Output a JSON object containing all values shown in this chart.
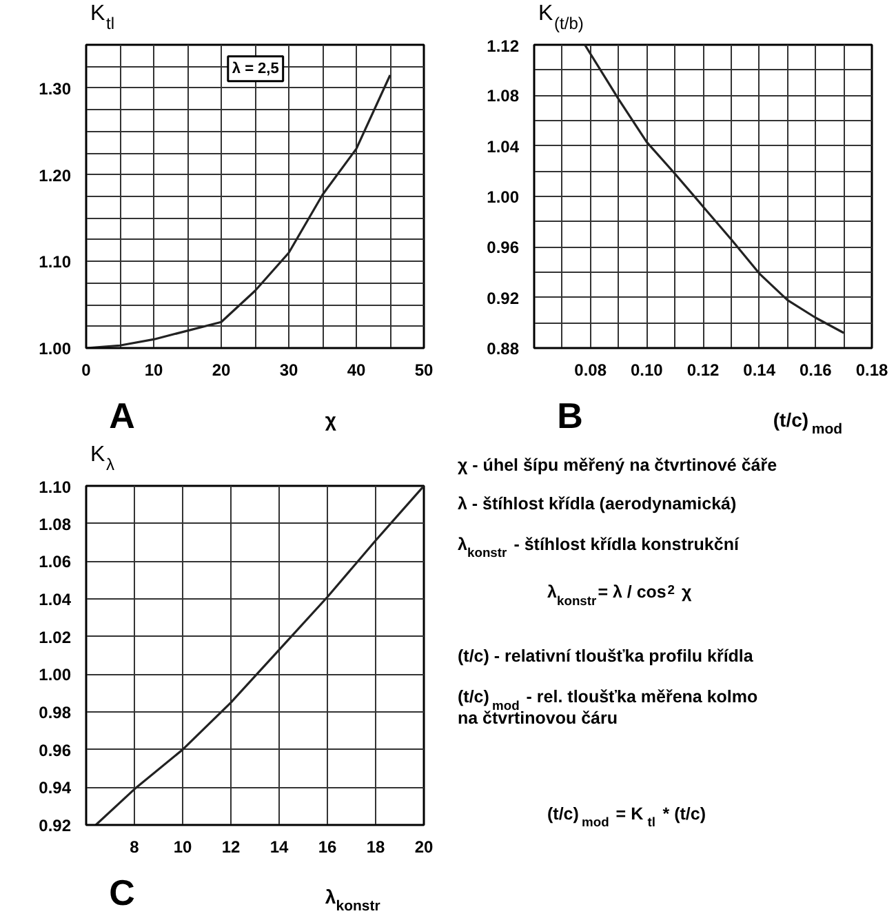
{
  "chart_data": [
    {
      "type": "line",
      "title": "A",
      "xlabel": "χ",
      "ylabel": "K$_{tl}$",
      "annotations": [
        "λ = 2,5"
      ],
      "grid": true,
      "color": "#222222",
      "x": [
        0,
        5,
        10,
        15,
        20,
        25,
        30,
        35,
        40,
        45
      ],
      "values": [
        1.0,
        1.003,
        1.01,
        1.02,
        1.03,
        1.066,
        1.11,
        1.177,
        1.23,
        1.315
      ],
      "xlim": [
        0,
        50
      ],
      "ylim": [
        1.0,
        1.35
      ],
      "xticks": [
        0,
        {
          "value": 5,
          "label": null
        },
        10,
        {
          "value": 15,
          "label": null
        },
        20,
        {
          "value": 25,
          "label": null
        },
        30,
        {
          "value": 35,
          "label": null
        },
        40,
        {
          "value": 45,
          "label": null
        },
        50
      ],
      "yticks": [
        {
          "value": 1.0,
          "label": "1.00"
        },
        {
          "value": 1.025,
          "label": null
        },
        {
          "value": 1.05,
          "label": null
        },
        {
          "value": 1.075,
          "label": null
        },
        {
          "value": 1.1,
          "label": "1.10"
        },
        {
          "value": 1.125,
          "label": null
        },
        {
          "value": 1.15,
          "label": null
        },
        {
          "value": 1.175,
          "label": null
        },
        {
          "value": 1.2,
          "label": "1.20"
        },
        {
          "value": 1.225,
          "label": null
        },
        {
          "value": 1.25,
          "label": null
        },
        {
          "value": 1.275,
          "label": null
        },
        {
          "value": 1.3,
          "label": "1.30"
        },
        {
          "value": 1.325,
          "label": null
        }
      ]
    },
    {
      "type": "line",
      "title": "B",
      "xlabel": "(t/c)$_{mod}$",
      "ylabel": "K$_{(t/b)}$",
      "grid": true,
      "color": "#222222",
      "x": [
        0.078,
        0.09,
        0.1,
        0.11,
        0.12,
        0.13,
        0.14,
        0.15,
        0.16,
        0.17
      ],
      "values": [
        1.12,
        1.077,
        1.043,
        1.018,
        0.992,
        0.966,
        0.939,
        0.918,
        0.904,
        0.892
      ],
      "xlim": [
        0.06,
        0.18
      ],
      "ylim": [
        0.88,
        1.12
      ],
      "xticks": [
        {
          "value": 0.07,
          "label": null
        },
        {
          "value": 0.08,
          "label": "0.08"
        },
        {
          "value": 0.09,
          "label": null
        },
        {
          "value": 0.1,
          "label": "0.10"
        },
        {
          "value": 0.11,
          "label": null
        },
        {
          "value": 0.12,
          "label": "0.12"
        },
        {
          "value": 0.13,
          "label": null
        },
        {
          "value": 0.14,
          "label": "0.14"
        },
        {
          "value": 0.15,
          "label": null
        },
        {
          "value": 0.16,
          "label": "0.16"
        },
        {
          "value": 0.17,
          "label": null
        },
        {
          "value": 0.18,
          "label": "0.18"
        }
      ],
      "yticks": [
        {
          "value": 0.88,
          "label": "0.88"
        },
        {
          "value": 0.9,
          "label": null
        },
        {
          "value": 0.92,
          "label": "0.92"
        },
        {
          "value": 0.94,
          "label": null
        },
        {
          "value": 0.96,
          "label": "0.96"
        },
        {
          "value": 0.98,
          "label": null
        },
        {
          "value": 1.0,
          "label": "1.00"
        },
        {
          "value": 1.02,
          "label": null
        },
        {
          "value": 1.04,
          "label": "1.04"
        },
        {
          "value": 1.06,
          "label": null
        },
        {
          "value": 1.08,
          "label": "1.08"
        },
        {
          "value": 1.1,
          "label": null
        },
        {
          "value": 1.12,
          "label": "1.12"
        }
      ]
    },
    {
      "type": "line",
      "title": "C",
      "xlabel": "λ$_{konstr}$",
      "ylabel": "K$_{λ}$",
      "grid": true,
      "color": "#222222",
      "x": [
        6.4,
        8,
        10,
        12,
        14,
        16,
        18,
        20
      ],
      "values": [
        0.92,
        0.939,
        0.96,
        0.985,
        1.013,
        1.041,
        1.071,
        1.1
      ],
      "xlim": [
        6,
        20
      ],
      "ylim": [
        0.92,
        1.1
      ],
      "xticks": [
        8,
        10,
        12,
        14,
        16,
        18,
        20
      ],
      "yticks": [
        {
          "value": 0.92,
          "label": "0.92"
        },
        {
          "value": 0.94,
          "label": "0.94"
        },
        {
          "value": 0.96,
          "label": "0.96"
        },
        {
          "value": 0.98,
          "label": "0.98"
        },
        {
          "value": 1.0,
          "label": "1.00"
        },
        {
          "value": 1.02,
          "label": "1.02"
        },
        {
          "value": 1.04,
          "label": "1.04"
        },
        {
          "value": 1.06,
          "label": "1.06"
        },
        {
          "value": 1.08,
          "label": "1.08"
        },
        {
          "value": 1.1,
          "label": "1.10"
        }
      ]
    },
    {
      "type": "other",
      "annotations": [
        "χ - úhel šípu měřený na čtvrtinové čáře",
        "λ - štíhlost křídla (aerodynamická)",
        "λ$_{konstr}$ - štíhlost křídla konstrukční",
        "λ$_{konstr}$= λ / cos$^{2}$ χ",
        "(t/c) - relativní tloušťka profilu křídla",
        "(t/c)$_{mod}$ - rel. tloušťka měřena kolmo\nna čtvrtinovou čáru",
        "(t/c)$_{mod}$ =  K$_{tl}$ * (t/c)"
      ]
    }
  ]
}
